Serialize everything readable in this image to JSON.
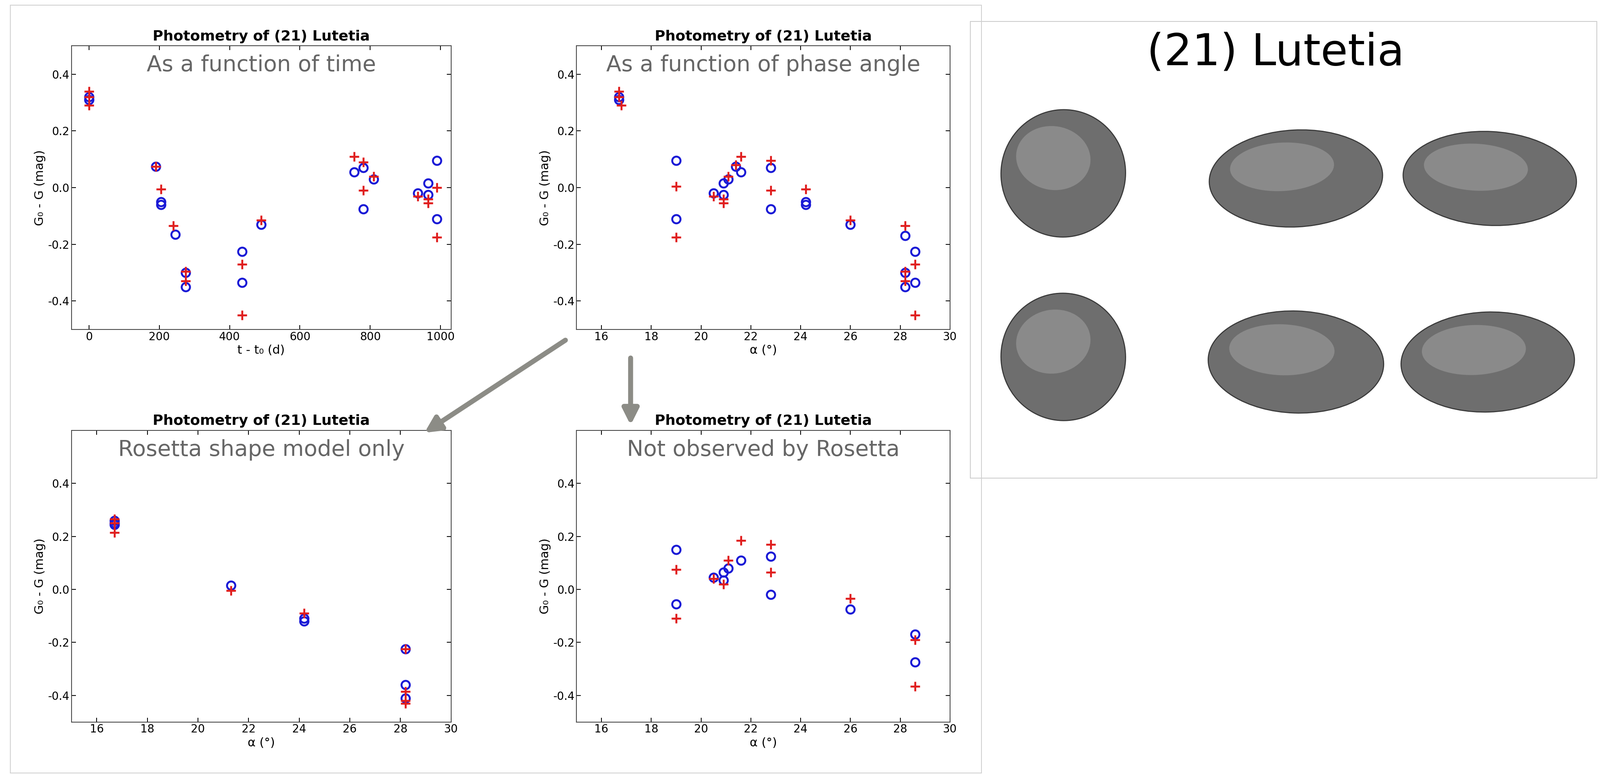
{
  "chart_data": [
    {
      "type": "scatter",
      "title": "Photometry of (21) Lutetia",
      "annotation": "As a function of time",
      "x_label": "t - t₀ (d)",
      "y_label": "G₀ - G (mag)",
      "xlim": [
        -50,
        1030
      ],
      "ylim": [
        -0.5,
        0.5
      ],
      "xticks": [
        0,
        200,
        400,
        600,
        800,
        1000
      ],
      "yticks": [
        -0.4,
        -0.2,
        0.0,
        0.2,
        0.4
      ],
      "series": [
        {
          "color": "#1a1ad6",
          "marker": "o",
          "x": [
            0,
            0,
            190,
            205,
            205,
            245,
            275,
            275,
            435,
            435,
            490,
            755,
            780,
            780,
            810,
            935,
            965,
            965,
            990,
            990
          ],
          "values": [
            0.31,
            0.32,
            0.075,
            -0.05,
            -0.06,
            -0.165,
            -0.3,
            -0.35,
            -0.225,
            -0.335,
            -0.13,
            0.055,
            0.07,
            -0.075,
            0.03,
            -0.02,
            0.015,
            -0.025,
            0.095,
            -0.11
          ]
        },
        {
          "color": "#e01f1f",
          "marker": "+",
          "x": [
            0,
            0,
            0,
            190,
            205,
            240,
            275,
            275,
            435,
            435,
            490,
            755,
            780,
            780,
            810,
            935,
            965,
            965,
            990,
            990
          ],
          "values": [
            0.34,
            0.32,
            0.29,
            0.075,
            -0.005,
            -0.135,
            -0.295,
            -0.33,
            -0.27,
            -0.45,
            -0.115,
            0.11,
            0.09,
            -0.01,
            0.04,
            -0.03,
            -0.04,
            -0.055,
            0.0,
            -0.175
          ]
        }
      ]
    },
    {
      "type": "scatter",
      "title": "Photometry of (21) Lutetia",
      "annotation": "As a function of phase angle",
      "x_label": "α (°)",
      "y_label": "G₀ - G (mag)",
      "xlim": [
        15,
        30
      ],
      "ylim": [
        -0.5,
        0.5
      ],
      "xticks": [
        16,
        18,
        20,
        22,
        24,
        26,
        28,
        30
      ],
      "yticks": [
        -0.4,
        -0.2,
        0.0,
        0.2,
        0.4
      ],
      "series": [
        {
          "color": "#1a1ad6",
          "marker": "o",
          "x": [
            16.7,
            16.7,
            19.0,
            19.0,
            20.5,
            20.9,
            20.9,
            21.1,
            21.4,
            21.6,
            22.8,
            22.8,
            24.2,
            24.2,
            26.0,
            28.2,
            28.2,
            28.2,
            28.6,
            28.6
          ],
          "values": [
            0.31,
            0.32,
            0.095,
            -0.11,
            -0.02,
            -0.025,
            0.015,
            0.03,
            0.075,
            0.055,
            0.07,
            -0.075,
            -0.05,
            -0.06,
            -0.13,
            -0.17,
            -0.3,
            -0.35,
            -0.225,
            -0.335
          ]
        },
        {
          "color": "#e01f1f",
          "marker": "+",
          "x": [
            16.7,
            16.7,
            16.8,
            19.0,
            19.0,
            20.5,
            20.9,
            20.9,
            21.1,
            21.4,
            21.6,
            22.8,
            22.8,
            24.2,
            26.0,
            28.2,
            28.2,
            28.2,
            28.6,
            28.6
          ],
          "values": [
            0.34,
            0.32,
            0.29,
            0.005,
            -0.175,
            -0.03,
            -0.055,
            -0.04,
            0.04,
            0.08,
            0.11,
            0.095,
            -0.01,
            -0.005,
            -0.115,
            -0.135,
            -0.295,
            -0.33,
            -0.27,
            -0.45
          ]
        }
      ]
    },
    {
      "type": "scatter",
      "title": "Photometry of (21) Lutetia",
      "annotation": "Rosetta shape model only",
      "x_label": "α (°)",
      "y_label": "G₀ - G (mag)",
      "xlim": [
        15,
        30
      ],
      "ylim": [
        -0.5,
        0.6
      ],
      "xticks": [
        16,
        18,
        20,
        22,
        24,
        26,
        28,
        30
      ],
      "yticks": [
        -0.4,
        -0.2,
        0.0,
        0.2,
        0.4
      ],
      "series": [
        {
          "color": "#1a1ad6",
          "marker": "o",
          "x": [
            16.7,
            16.7,
            16.7,
            21.3,
            24.2,
            24.2,
            28.2,
            28.2,
            28.2
          ],
          "values": [
            0.25,
            0.26,
            0.245,
            0.015,
            -0.11,
            -0.12,
            -0.225,
            -0.36,
            -0.41
          ]
        },
        {
          "color": "#e01f1f",
          "marker": "+",
          "x": [
            16.7,
            16.7,
            16.7,
            21.3,
            24.2,
            28.2,
            28.2,
            28.2,
            28.2
          ],
          "values": [
            0.265,
            0.25,
            0.215,
            -0.005,
            -0.09,
            -0.225,
            -0.385,
            -0.42,
            -0.43
          ]
        }
      ]
    },
    {
      "type": "scatter",
      "title": "Photometry of (21) Lutetia",
      "annotation": "Not observed by Rosetta",
      "x_label": "α (°)",
      "y_label": "G₀ - G (mag)",
      "xlim": [
        15,
        30
      ],
      "ylim": [
        -0.5,
        0.6
      ],
      "xticks": [
        16,
        18,
        20,
        22,
        24,
        26,
        28,
        30
      ],
      "yticks": [
        -0.4,
        -0.2,
        0.0,
        0.2,
        0.4
      ],
      "series": [
        {
          "color": "#1a1ad6",
          "marker": "o",
          "x": [
            19.0,
            19.0,
            20.5,
            20.9,
            20.9,
            21.1,
            21.6,
            22.8,
            22.8,
            26.0,
            28.6,
            28.6
          ],
          "values": [
            0.15,
            -0.055,
            0.045,
            0.065,
            0.035,
            0.08,
            0.11,
            0.125,
            -0.02,
            -0.075,
            -0.17,
            -0.275
          ]
        },
        {
          "color": "#e01f1f",
          "marker": "+",
          "x": [
            19.0,
            19.0,
            20.5,
            20.9,
            21.1,
            21.6,
            22.8,
            22.8,
            26.0,
            28.6,
            28.6
          ],
          "values": [
            0.075,
            -0.11,
            0.04,
            0.02,
            0.11,
            0.185,
            0.17,
            0.065,
            -0.035,
            -0.19,
            -0.365
          ]
        }
      ]
    }
  ],
  "shape_panel": {
    "title": "(21) Lutetia"
  }
}
